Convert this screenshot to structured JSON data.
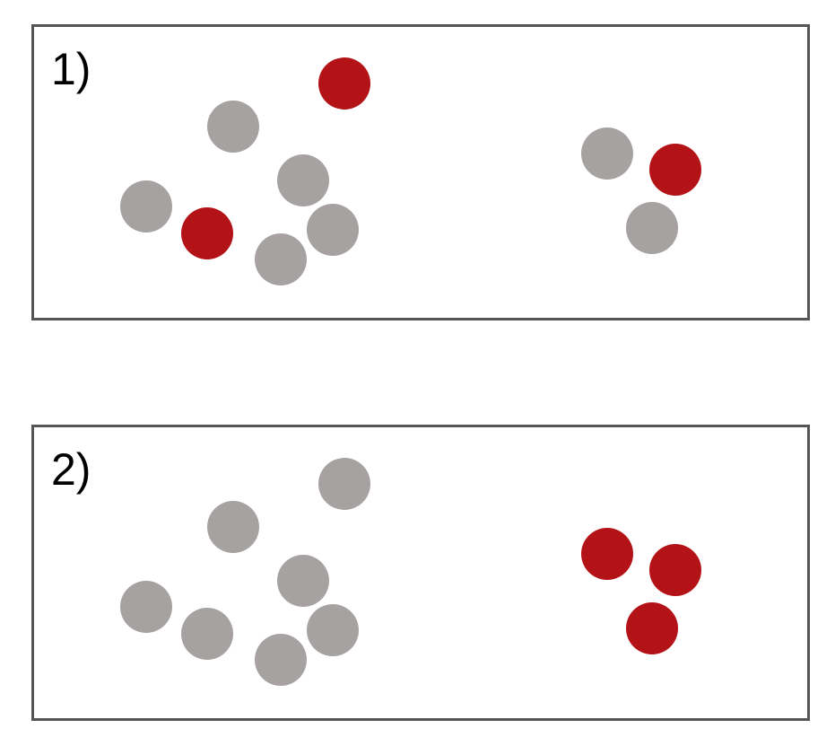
{
  "colors": {
    "gray": "#a6a2a1",
    "red": "#b31217",
    "border": "#555555"
  },
  "panels": [
    {
      "label": "1)",
      "dots": [
        "red",
        "gray",
        "gray",
        "gray",
        "red",
        "gray",
        "gray",
        "gray",
        "red",
        "gray"
      ]
    },
    {
      "label": "2)",
      "dots": [
        "gray",
        "gray",
        "gray",
        "gray",
        "gray",
        "gray",
        "gray",
        "red",
        "red",
        "red"
      ]
    }
  ]
}
